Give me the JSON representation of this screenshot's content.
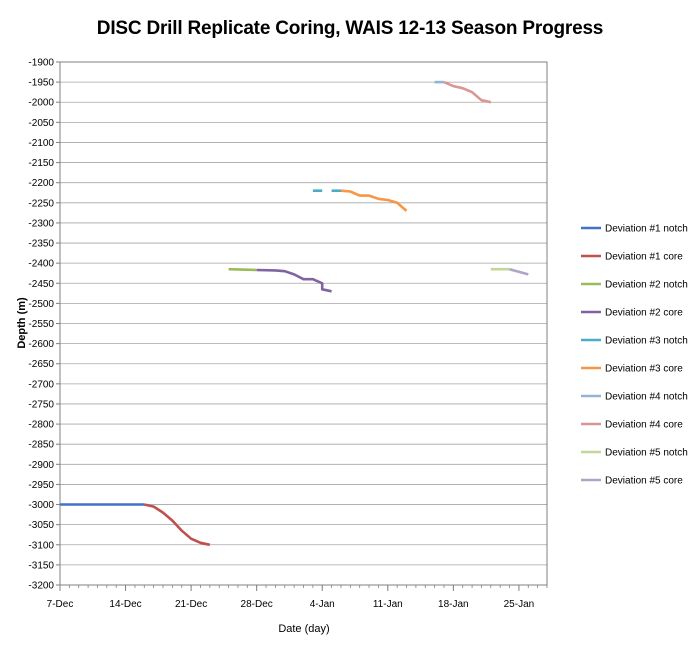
{
  "chart_data": {
    "type": "line",
    "title": "DISC Drill Replicate Coring, WAIS 12-13 Season Progress",
    "xlabel": "Date (day)",
    "ylabel": "Depth (m)",
    "x_ticks": [
      "7-Dec",
      "14-Dec",
      "21-Dec",
      "28-Dec",
      "4-Jan",
      "11-Jan",
      "18-Jan",
      "25-Jan"
    ],
    "x_tick_dates": [
      "2012-12-07",
      "2012-12-14",
      "2012-12-21",
      "2012-12-28",
      "2013-01-04",
      "2013-01-11",
      "2013-01-18",
      "2013-01-25"
    ],
    "xlim": [
      "2012-12-07",
      "2013-01-28"
    ],
    "ylim": [
      -3200,
      -1900
    ],
    "y_tick_step": 50,
    "grid": true,
    "legend_position": "right",
    "series": [
      {
        "name": "Deviation #1 notch",
        "color": "#4472C4",
        "points": [
          [
            "2012-12-07",
            -3000
          ],
          [
            "2012-12-16",
            -3000
          ]
        ]
      },
      {
        "name": "Deviation #1 core",
        "color": "#C0504D",
        "points": [
          [
            "2012-12-16",
            -3000
          ],
          [
            "2012-12-17",
            -3005
          ],
          [
            "2012-12-18",
            -3020
          ],
          [
            "2012-12-19",
            -3040
          ],
          [
            "2012-12-20",
            -3065
          ],
          [
            "2012-12-21",
            -3085
          ],
          [
            "2012-12-22",
            -3095
          ],
          [
            "2012-12-23",
            -3100
          ]
        ]
      },
      {
        "name": "Deviation #2 notch",
        "color": "#9BBB59",
        "points": [
          [
            "2012-12-25",
            -2415
          ],
          [
            "2012-12-28",
            -2417
          ]
        ]
      },
      {
        "name": "Deviation #2 core",
        "color": "#8064A2",
        "points": [
          [
            "2012-12-28",
            -2417
          ],
          [
            "2012-12-30",
            -2418
          ],
          [
            "2012-12-31",
            -2420
          ],
          [
            "2013-01-01",
            -2428
          ],
          [
            "2013-01-02",
            -2440
          ],
          [
            "2013-01-03",
            -2440
          ],
          [
            "2013-01-04",
            -2450
          ],
          [
            "2013-01-04",
            -2465
          ],
          [
            "2013-01-05",
            -2470
          ]
        ]
      },
      {
        "name": "Deviation #3 notch",
        "color": "#4BACC6",
        "points": [
          [
            "2013-01-03",
            -2220
          ],
          [
            "2013-01-04",
            -2220
          ],
          null,
          [
            "2013-01-05",
            -2220
          ],
          [
            "2013-01-06",
            -2220
          ]
        ]
      },
      {
        "name": "Deviation #3 core",
        "color": "#F79646",
        "points": [
          [
            "2013-01-06",
            -2220
          ],
          [
            "2013-01-07",
            -2222
          ],
          [
            "2013-01-08",
            -2232
          ],
          [
            "2013-01-09",
            -2232
          ],
          [
            "2013-01-10",
            -2240
          ],
          [
            "2013-01-11",
            -2243
          ],
          [
            "2013-01-12",
            -2250
          ],
          [
            "2013-01-13",
            -2270
          ]
        ]
      },
      {
        "name": "Deviation #4 notch",
        "color": "#95B3D7",
        "points": [
          [
            "2013-01-16",
            -1950
          ],
          [
            "2013-01-17",
            -1950
          ]
        ]
      },
      {
        "name": "Deviation #4 core",
        "color": "#D99694",
        "points": [
          [
            "2013-01-17",
            -1950
          ],
          [
            "2013-01-18",
            -1960
          ],
          [
            "2013-01-19",
            -1965
          ],
          [
            "2013-01-20",
            -1975
          ],
          [
            "2013-01-21",
            -1995
          ],
          [
            "2013-01-22",
            -2000
          ]
        ]
      },
      {
        "name": "Deviation #5 notch",
        "color": "#C3D69B",
        "points": [
          [
            "2013-01-22",
            -2415
          ],
          [
            "2013-01-24",
            -2415
          ]
        ]
      },
      {
        "name": "Deviation #5 core",
        "color": "#B3A2C7",
        "points": [
          [
            "2013-01-24",
            -2415
          ],
          [
            "2013-01-26",
            -2428
          ]
        ]
      }
    ]
  }
}
